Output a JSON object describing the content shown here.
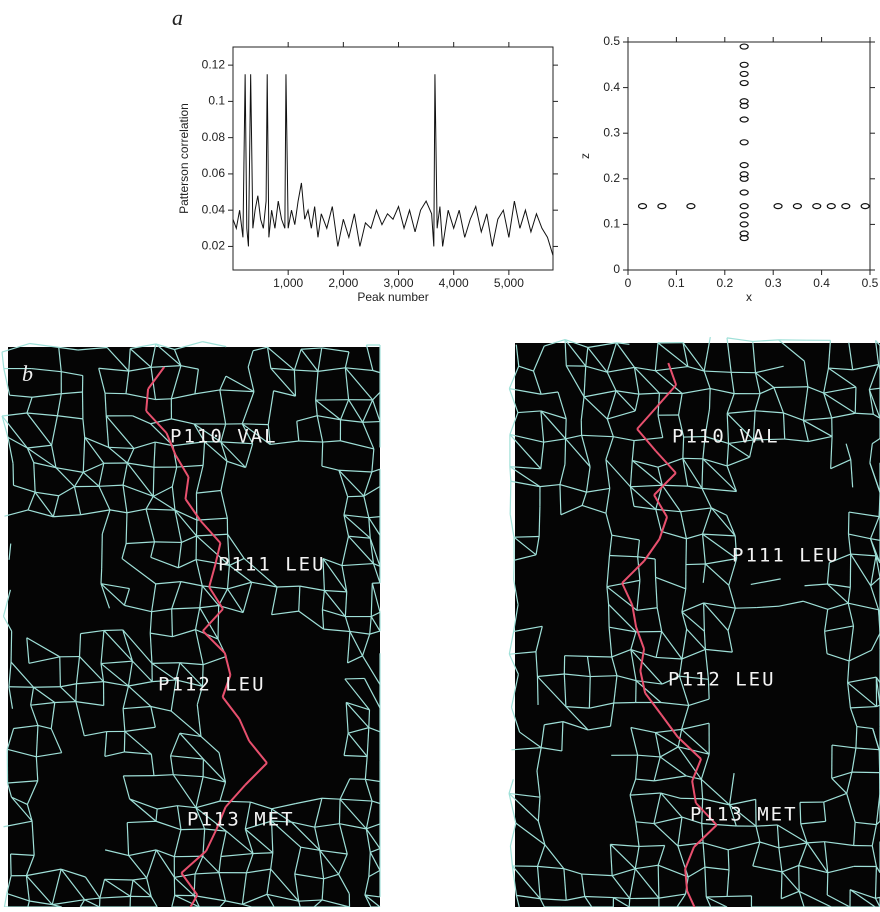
{
  "panel_labels": [
    "a",
    "b"
  ],
  "chart_data": [
    {
      "type": "line",
      "ylabel": "Patterson correlation",
      "xlabel": "Peak number",
      "color": "#111111",
      "x": [
        0,
        60,
        120,
        180,
        220,
        250,
        280,
        320,
        360,
        400,
        450,
        500,
        550,
        600,
        620,
        650,
        700,
        760,
        820,
        880,
        940,
        960,
        1000,
        1060,
        1120,
        1180,
        1240,
        1300,
        1360,
        1420,
        1480,
        1540,
        1600,
        1700,
        1800,
        1900,
        2000,
        2100,
        2200,
        2300,
        2400,
        2500,
        2600,
        2700,
        2800,
        2900,
        3000,
        3100,
        3200,
        3300,
        3400,
        3500,
        3600,
        3640,
        3660,
        3700,
        3750,
        3800,
        3900,
        4000,
        4100,
        4200,
        4300,
        4400,
        4500,
        4600,
        4700,
        4800,
        4900,
        5000,
        5100,
        5200,
        5300,
        5400,
        5500,
        5600,
        5700,
        5800
      ],
      "values": [
        0.035,
        0.03,
        0.04,
        0.025,
        0.115,
        0.03,
        0.02,
        0.115,
        0.03,
        0.04,
        0.048,
        0.035,
        0.03,
        0.045,
        0.115,
        0.025,
        0.04,
        0.03,
        0.045,
        0.035,
        0.03,
        0.115,
        0.03,
        0.04,
        0.032,
        0.045,
        0.055,
        0.035,
        0.04,
        0.03,
        0.042,
        0.025,
        0.038,
        0.03,
        0.042,
        0.02,
        0.035,
        0.025,
        0.038,
        0.02,
        0.033,
        0.03,
        0.04,
        0.032,
        0.038,
        0.035,
        0.042,
        0.03,
        0.04,
        0.028,
        0.04,
        0.045,
        0.038,
        0.02,
        0.115,
        0.03,
        0.042,
        0.02,
        0.04,
        0.03,
        0.04,
        0.025,
        0.035,
        0.042,
        0.028,
        0.038,
        0.02,
        0.035,
        0.04,
        0.025,
        0.045,
        0.03,
        0.04,
        0.028,
        0.038,
        0.03,
        0.025,
        0.015
      ],
      "xlim": [
        0,
        5800
      ],
      "ylim": [
        0.007,
        0.13
      ],
      "xticks": [
        {
          "value": 1000,
          "label": "1,000"
        },
        {
          "value": 2000,
          "label": "2,000"
        },
        {
          "value": 3000,
          "label": "3,000"
        },
        {
          "value": 4000,
          "label": "4,000"
        },
        {
          "value": 5000,
          "label": "5,000"
        }
      ],
      "yticks": [
        0.02,
        0.04,
        0.06,
        0.08,
        0.1,
        0.12
      ]
    },
    {
      "type": "scatter",
      "xlabel": "x",
      "ylabel": "z",
      "color": "#111111",
      "x": [
        0.24,
        0.24,
        0.24,
        0.24,
        0.24,
        0.24,
        0.24,
        0.24,
        0.24,
        0.24,
        0.24,
        0.24,
        0.24,
        0.24,
        0.24,
        0.24,
        0.24,
        0.03,
        0.07,
        0.13,
        0.31,
        0.35,
        0.39,
        0.42,
        0.45,
        0.49
      ],
      "values": [
        0.49,
        0.45,
        0.43,
        0.41,
        0.37,
        0.36,
        0.33,
        0.28,
        0.23,
        0.21,
        0.2,
        0.17,
        0.14,
        0.12,
        0.1,
        0.08,
        0.07,
        0.14,
        0.14,
        0.14,
        0.14,
        0.14,
        0.14,
        0.14,
        0.14,
        0.14
      ],
      "xlim": [
        0,
        0.5
      ],
      "ylim": [
        0,
        0.5
      ],
      "xticks": [
        0,
        0.1,
        0.2,
        0.3,
        0.4,
        0.5
      ],
      "yticks": [
        0,
        0.1,
        0.2,
        0.3,
        0.4,
        0.5
      ]
    }
  ],
  "stereo_images": {
    "residues": [
      "P110 VAL",
      "P111 LEU",
      "P112 LEU",
      "P113 MET"
    ]
  }
}
